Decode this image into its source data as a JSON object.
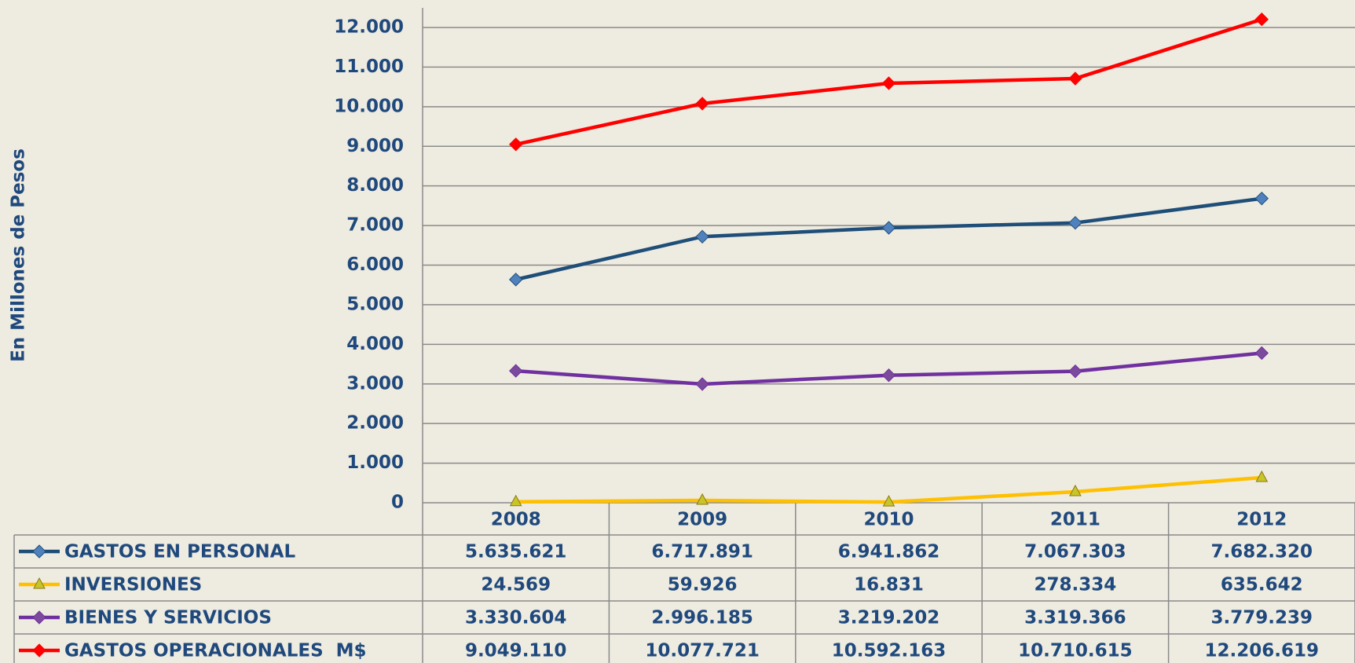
{
  "chart_data": {
    "type": "line",
    "y_label": "En Millones de Pesos",
    "categories": [
      "2008",
      "2009",
      "2010",
      "2011",
      "2012"
    ],
    "series": [
      {
        "name": "GASTOS EN PERSONAL",
        "color": "#1f4e79",
        "marker": "diamond",
        "marker_color": "#4f81bd",
        "values": [
          5635.621,
          6717.891,
          6941.862,
          7067.303,
          7682.32
        ],
        "value_labels": [
          "5.635.621",
          "6.717.891",
          "6.941.862",
          "7.067.303",
          "7.682.320"
        ]
      },
      {
        "name": "INVERSIONES",
        "color": "#ffc000",
        "marker": "triangle",
        "marker_color": "#c9c42a",
        "values": [
          24.569,
          59.926,
          16.831,
          278.334,
          635.642
        ],
        "value_labels": [
          "24.569",
          "59.926",
          "16.831",
          "278.334",
          "635.642"
        ]
      },
      {
        "name": "BIENES Y SERVICIOS",
        "color": "#7030a0",
        "marker": "diamond",
        "marker_color": "#7b4a9c",
        "values": [
          3330.604,
          2996.185,
          3219.202,
          3319.366,
          3779.239
        ],
        "value_labels": [
          "3.330.604",
          "2.996.185",
          "3.219.202",
          "3.319.366",
          "3.779.239"
        ]
      },
      {
        "name": "GASTOS OPERACIONALES  M$",
        "color": "#ff0000",
        "marker": "diamond",
        "marker_color": "#ff0000",
        "values": [
          9049.11,
          10077.721,
          10592.163,
          10710.615,
          12206.619
        ],
        "value_labels": [
          "9.049.110",
          "10.077.721",
          "10.592.163",
          "10.710.615",
          "12.206.619"
        ]
      }
    ],
    "ylim": [
      0,
      12000
    ],
    "yticks": [
      0,
      {
        "value": 1000,
        "label": "1.000"
      },
      {
        "value": 2000,
        "label": "2.000"
      },
      {
        "value": 3000,
        "label": "3.000"
      },
      {
        "value": 4000,
        "label": "4.000"
      },
      {
        "value": 5000,
        "label": "5.000"
      },
      {
        "value": 6000,
        "label": "6.000"
      },
      {
        "value": 7000,
        "label": "7.000"
      },
      {
        "value": 8000,
        "label": "8.000"
      },
      {
        "value": 9000,
        "label": "9.000"
      },
      {
        "value": 10000,
        "label": "10.000"
      },
      {
        "value": 11000,
        "label": "11.000"
      },
      {
        "value": 12000,
        "label": "12.000"
      }
    ],
    "grid": true
  }
}
